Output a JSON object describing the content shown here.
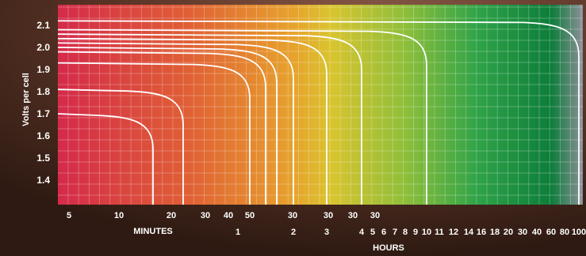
{
  "chart_data": {
    "type": "line",
    "ylabel": "Volts per cell",
    "x_group_labels": {
      "minutes": "MINUTES",
      "hours": "HOURS"
    },
    "y_ticks": [
      "1.4",
      "1.5",
      "1.6",
      "1.7",
      "1.8",
      "1.9",
      "2.0",
      "2.1"
    ],
    "x_ticks_row1": [
      "5",
      "10",
      "20",
      "30",
      "40",
      "50",
      "30",
      "30",
      "30",
      "30"
    ],
    "x_ticks_row2": [
      "1",
      "2",
      "3",
      "4",
      "5",
      "6",
      "7",
      "8",
      "9",
      "10",
      "11",
      "12",
      "14",
      "16",
      "18",
      "20",
      "30",
      "40",
      "60",
      "80",
      "100"
    ],
    "ylim": [
      1.3,
      2.2
    ],
    "background_gradient": [
      "#d42a4a",
      "#e06035",
      "#e7a32d",
      "#d9c42f",
      "#8fbf3a",
      "#2fa348",
      "#0d7d3a",
      "#8b8f98"
    ],
    "series": [
      {
        "start_volts": 1.7,
        "end_time": "18 min"
      },
      {
        "start_volts": 1.81,
        "end_time": "25 min"
      },
      {
        "start_volts": 1.93,
        "end_time": "50 min"
      },
      {
        "start_volts": 1.98,
        "end_time": "1.5 h"
      },
      {
        "start_volts": 2.0,
        "end_time": "1.7 h"
      },
      {
        "start_volts": 2.02,
        "end_time": "2 h"
      },
      {
        "start_volts": 2.04,
        "end_time": "3 h"
      },
      {
        "start_volts": 2.06,
        "end_time": "4 h"
      },
      {
        "start_volts": 2.08,
        "end_time": "10 h"
      },
      {
        "start_volts": 2.12,
        "end_time": "100 h"
      }
    ]
  }
}
